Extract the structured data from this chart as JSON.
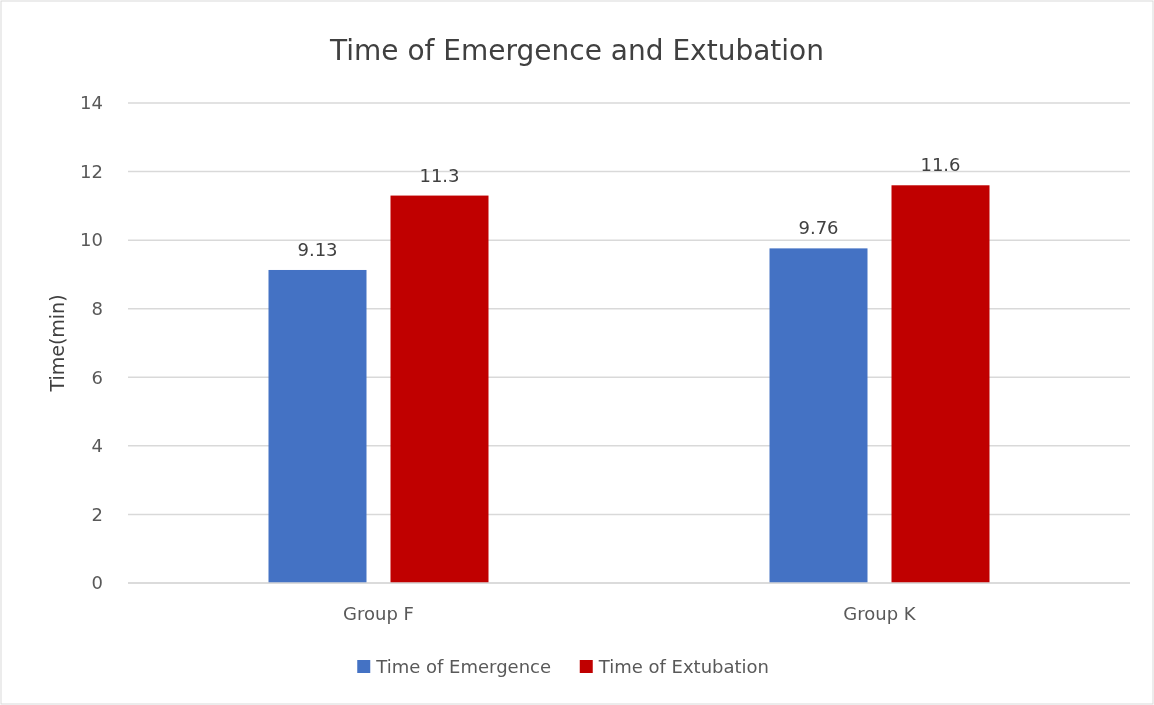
{
  "chart_data": {
    "type": "bar",
    "title": "Time of Emergence and Extubation",
    "ylabel": "Time(min)",
    "categories": [
      "Group F",
      "Group K"
    ],
    "series": [
      {
        "name": "Time of Emergence",
        "color": "#4472c4",
        "values": [
          9.13,
          9.76
        ]
      },
      {
        "name": "Time of Extubation",
        "color": "#c00000",
        "values": [
          11.3,
          11.6
        ]
      }
    ],
    "ylim": [
      0,
      14
    ],
    "yticks": [
      0,
      2,
      4,
      6,
      8,
      10,
      12,
      14
    ],
    "grid": "y",
    "legend": "bottom",
    "data_labels": true
  }
}
